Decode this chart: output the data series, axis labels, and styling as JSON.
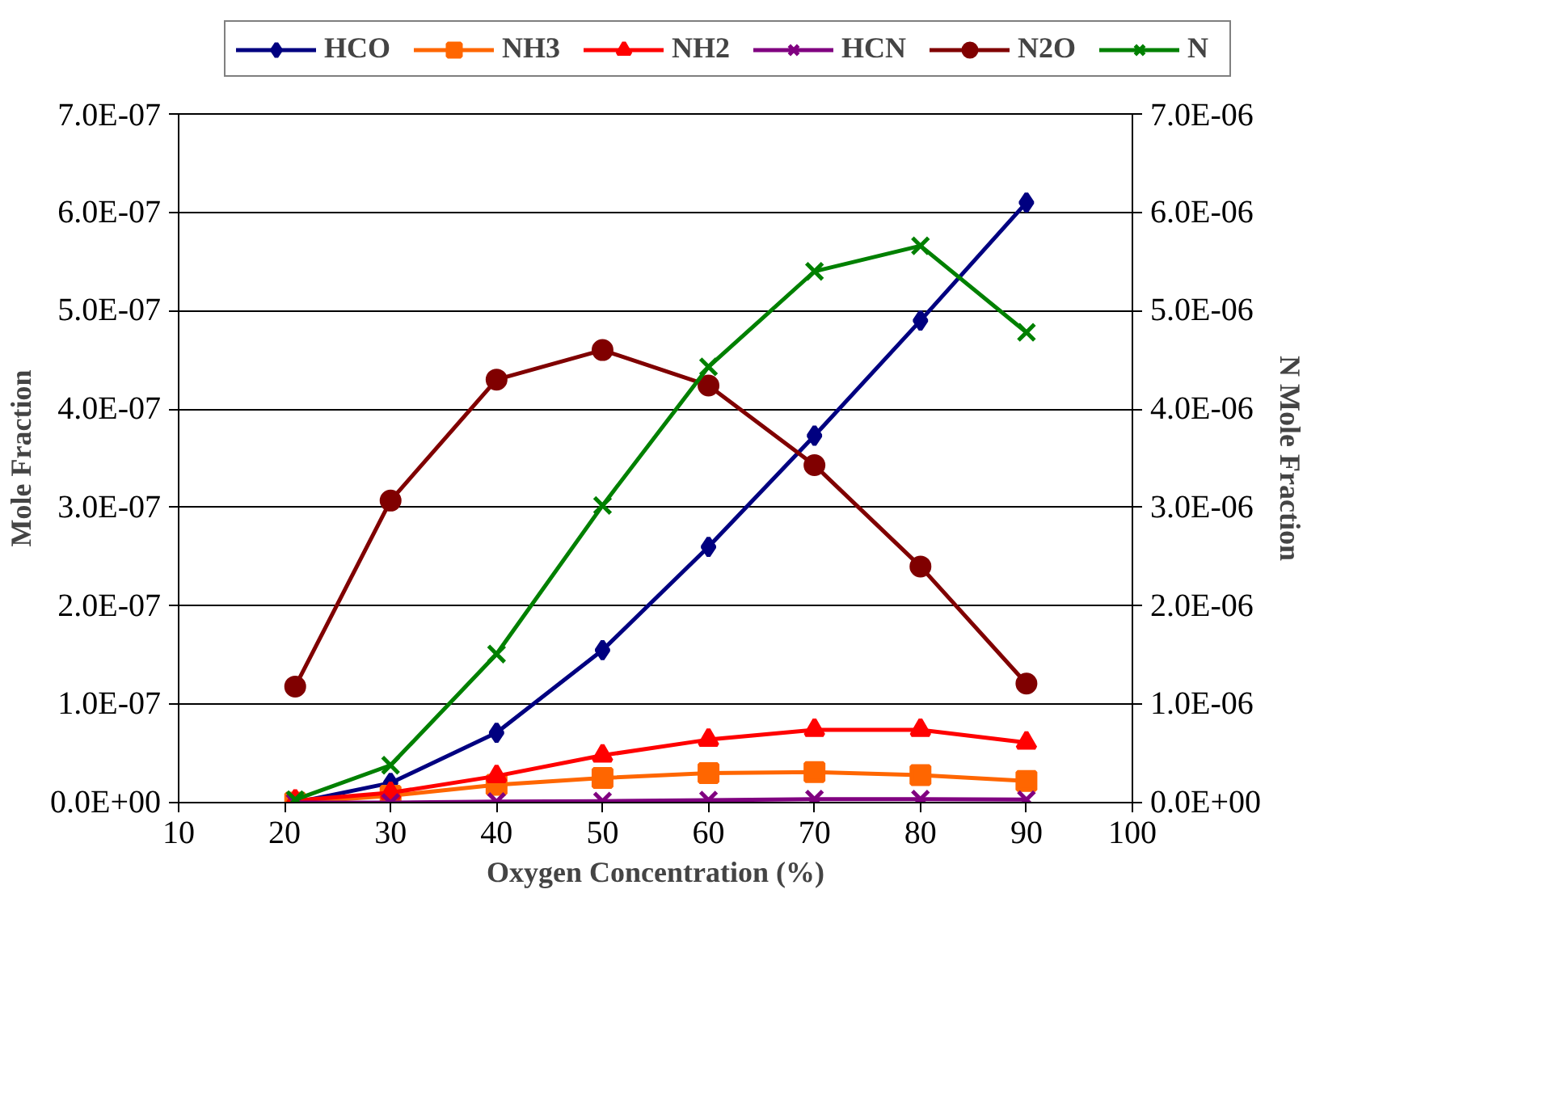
{
  "chart_data": {
    "type": "line",
    "xlabel": "Oxygen Concentration (%)",
    "ylabel": "Mole Fraction",
    "y2label": "N Mole Fraction",
    "x": [
      21,
      30,
      40,
      50,
      60,
      70,
      80,
      90
    ],
    "series": [
      {
        "name": "HCO",
        "color": "#000080",
        "marker": "diamond",
        "values": [
          0,
          2e-08,
          7.1e-08,
          1.55e-07,
          2.6e-07,
          3.73e-07,
          4.9e-07,
          6.1e-07
        ]
      },
      {
        "name": "NH3",
        "color": "#ff6600",
        "marker": "square",
        "values": [
          0,
          7e-09,
          1.8e-08,
          2.5e-08,
          3e-08,
          3.1e-08,
          2.8e-08,
          2.2e-08
        ]
      },
      {
        "name": "NH2",
        "color": "#ff0000",
        "marker": "triangle",
        "values": [
          2e-09,
          1e-08,
          2.7e-08,
          4.8e-08,
          6.4e-08,
          7.4e-08,
          7.4e-08,
          6.1e-08
        ]
      },
      {
        "name": "HCN",
        "color": "#800080",
        "marker": "cross",
        "values": [
          0,
          0,
          1e-09,
          1.5e-09,
          2.5e-09,
          3.5e-09,
          3.5e-09,
          3e-09
        ]
      },
      {
        "name": "N2O",
        "color": "#800000",
        "marker": "circle",
        "values": [
          1.18e-07,
          3.07e-07,
          4.3e-07,
          4.6e-07,
          4.24e-07,
          3.43e-07,
          2.4e-07,
          1.21e-07
        ]
      },
      {
        "name": "N",
        "color": "#008000",
        "marker": "cross",
        "axis": "y2",
        "values": [
          3e-08,
          3.8e-07,
          1.51e-06,
          3.02e-06,
          4.43e-06,
          5.4e-06,
          5.66e-06,
          4.78e-06
        ]
      }
    ],
    "xlim": [
      10,
      100
    ],
    "xticks": [
      10,
      20,
      30,
      40,
      50,
      60,
      70,
      80,
      90,
      100
    ],
    "ylim": [
      0,
      7e-07
    ],
    "yticks": [
      {
        "value": 0,
        "label": "0.0E+00"
      },
      {
        "value": 1e-07,
        "label": "1.0E-07"
      },
      {
        "value": 2e-07,
        "label": "2.0E-07"
      },
      {
        "value": 3e-07,
        "label": "3.0E-07"
      },
      {
        "value": 4e-07,
        "label": "4.0E-07"
      },
      {
        "value": 5e-07,
        "label": "5.0E-07"
      },
      {
        "value": 6e-07,
        "label": "6.0E-07"
      },
      {
        "value": 7e-07,
        "label": "7.0E-07"
      }
    ],
    "y2lim": [
      0,
      7e-06
    ],
    "y2ticks": [
      {
        "value": 0,
        "label": "0.0E+00"
      },
      {
        "value": 1e-06,
        "label": "1.0E-06"
      },
      {
        "value": 2e-06,
        "label": "2.0E-06"
      },
      {
        "value": 3e-06,
        "label": "3.0E-06"
      },
      {
        "value": 4e-06,
        "label": "4.0E-06"
      },
      {
        "value": 5e-06,
        "label": "5.0E-06"
      },
      {
        "value": 6e-06,
        "label": "6.0E-06"
      },
      {
        "value": 7e-06,
        "label": "7.0E-06"
      }
    ],
    "grid": "y",
    "legend": "top",
    "line_style": "solid"
  }
}
